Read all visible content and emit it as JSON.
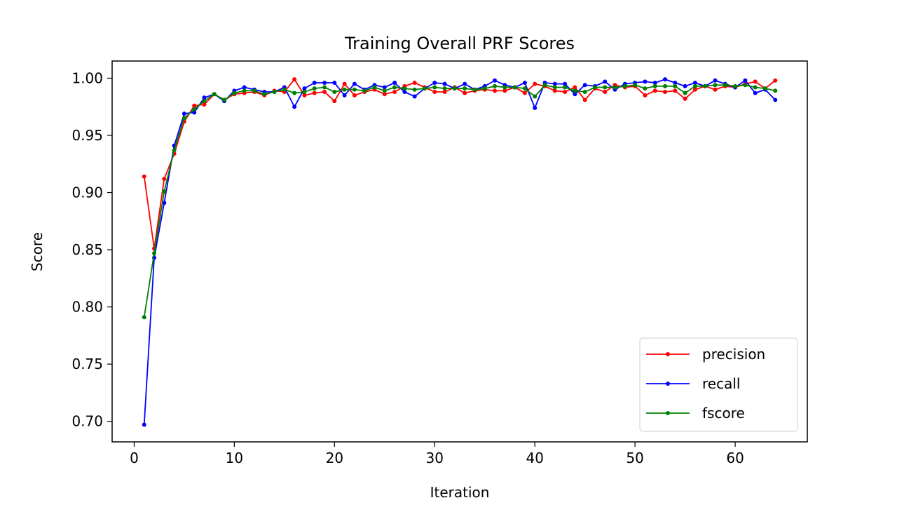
{
  "chart_data": {
    "type": "line",
    "title": "Training Overall PRF Scores",
    "xlabel": "Iteration",
    "ylabel": "Score",
    "xlim": [
      -2.2,
      67.2
    ],
    "ylim": [
      0.682,
      1.015
    ],
    "xticks": [
      0,
      10,
      20,
      30,
      40,
      50,
      60
    ],
    "xtick_labels": [
      "0",
      "10",
      "20",
      "30",
      "40",
      "50",
      "60"
    ],
    "yticks": [
      0.7,
      0.75,
      0.8,
      0.85,
      0.9,
      0.95,
      1.0
    ],
    "ytick_labels": [
      "0.70",
      "0.75",
      "0.80",
      "0.85",
      "0.90",
      "0.95",
      "1.00"
    ],
    "grid": false,
    "legend_position": "lower-right",
    "x": [
      1,
      2,
      3,
      4,
      5,
      6,
      7,
      8,
      9,
      10,
      11,
      12,
      13,
      14,
      15,
      16,
      17,
      18,
      19,
      20,
      21,
      22,
      23,
      24,
      25,
      26,
      27,
      28,
      29,
      30,
      31,
      32,
      33,
      34,
      35,
      36,
      37,
      38,
      39,
      40,
      41,
      42,
      43,
      44,
      45,
      46,
      47,
      48,
      49,
      50,
      51,
      52,
      53,
      54,
      55,
      56,
      57,
      58,
      59,
      60,
      61,
      62,
      63,
      64
    ],
    "series": [
      {
        "name": "precision",
        "color": "#ff0000",
        "values": [
          0.914,
          0.851,
          0.912,
          0.934,
          0.962,
          0.976,
          0.977,
          0.986,
          0.981,
          0.986,
          0.987,
          0.988,
          0.985,
          0.989,
          0.988,
          0.999,
          0.985,
          0.987,
          0.988,
          0.98,
          0.995,
          0.985,
          0.988,
          0.99,
          0.986,
          0.988,
          0.993,
          0.996,
          0.992,
          0.988,
          0.988,
          0.992,
          0.987,
          0.989,
          0.99,
          0.989,
          0.989,
          0.992,
          0.987,
          0.995,
          0.993,
          0.989,
          0.988,
          0.992,
          0.981,
          0.991,
          0.988,
          0.994,
          0.992,
          0.993,
          0.985,
          0.989,
          0.988,
          0.989,
          0.982,
          0.99,
          0.993,
          0.99,
          0.993,
          0.992,
          0.995,
          0.997,
          0.991,
          0.998
        ]
      },
      {
        "name": "recall",
        "color": "#0000ff",
        "values": [
          0.697,
          0.843,
          0.891,
          0.941,
          0.969,
          0.97,
          0.983,
          0.986,
          0.98,
          0.989,
          0.992,
          0.99,
          0.988,
          0.988,
          0.992,
          0.975,
          0.991,
          0.996,
          0.996,
          0.996,
          0.985,
          0.995,
          0.99,
          0.994,
          0.992,
          0.996,
          0.988,
          0.984,
          0.991,
          0.996,
          0.995,
          0.991,
          0.995,
          0.99,
          0.993,
          0.998,
          0.994,
          0.992,
          0.996,
          0.974,
          0.996,
          0.995,
          0.995,
          0.986,
          0.994,
          0.993,
          0.997,
          0.99,
          0.995,
          0.996,
          0.997,
          0.996,
          0.999,
          0.996,
          0.993,
          0.996,
          0.993,
          0.998,
          0.995,
          0.992,
          0.998,
          0.987,
          0.99,
          0.981
        ]
      },
      {
        "name": "fscore",
        "color": "#008000",
        "values": [
          0.791,
          0.847,
          0.901,
          0.937,
          0.965,
          0.973,
          0.98,
          0.986,
          0.981,
          0.987,
          0.989,
          0.989,
          0.986,
          0.988,
          0.99,
          0.987,
          0.988,
          0.991,
          0.992,
          0.988,
          0.99,
          0.99,
          0.989,
          0.992,
          0.989,
          0.992,
          0.991,
          0.99,
          0.991,
          0.992,
          0.991,
          0.991,
          0.991,
          0.99,
          0.991,
          0.993,
          0.992,
          0.992,
          0.991,
          0.984,
          0.994,
          0.992,
          0.992,
          0.989,
          0.988,
          0.992,
          0.992,
          0.992,
          0.993,
          0.994,
          0.991,
          0.993,
          0.993,
          0.993,
          0.987,
          0.993,
          0.993,
          0.994,
          0.994,
          0.993,
          0.994,
          0.992,
          0.991,
          0.989
        ]
      }
    ]
  }
}
